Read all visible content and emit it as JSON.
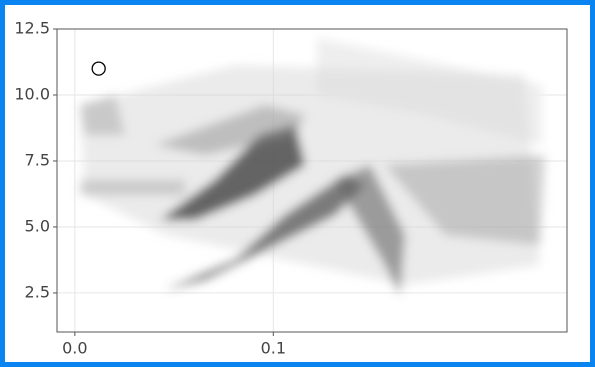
{
  "chart_data": {
    "type": "scatter",
    "x": [
      0.012
    ],
    "y": [
      11
    ],
    "xlim": [
      -0.009,
      0.248
    ],
    "ylim": [
      1.02,
      12.5
    ],
    "xticks": [
      {
        "value": 0,
        "label": "0.0"
      },
      {
        "value": 0.1,
        "label": "0.1"
      }
    ],
    "yticks": [
      2.5,
      {
        "value": 5,
        "label": "5.0"
      },
      7.5,
      {
        "value": 10,
        "label": "10.0"
      },
      12.5
    ],
    "grid": true
  }
}
